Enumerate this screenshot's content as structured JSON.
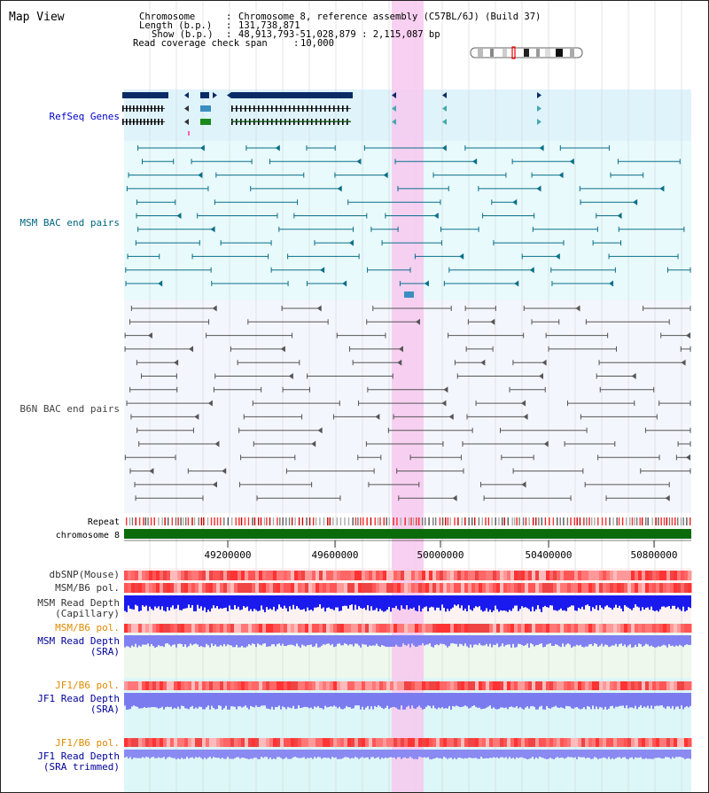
{
  "title": "Map View",
  "info": {
    "chromosome_label": "Chromosome",
    "chromosome_value": "Chromosome 8, reference assembly (C57BL/6J) (Build 37)",
    "length_label": "Length (b.p.)",
    "length_value": "131,738,871",
    "show_label": "Show (b.p.)",
    "show_value": "48,913,793-51,028,879 : 2,115,087 bp",
    "coverage_label": "Read coverage check span",
    "coverage_value": "10,000"
  },
  "tracks": {
    "refseq": "RefSeq Genes",
    "msm_bac": "MSM BAC end pairs",
    "b6n_bac": "B6N BAC end pairs",
    "repeat": "Repeat",
    "chromosome": "chromosome 8",
    "dbsnp": "dbSNP(Mouse)",
    "msm_b6_pol": "MSM/B6 pol.",
    "msm_read_depth_cap_1": "MSM Read Depth",
    "msm_read_depth_cap_2": "(Capillary)",
    "msm_b6_pol_sra": "MSM/B6 pol.",
    "msm_read_depth_sra_1": "MSM Read Depth",
    "msm_read_depth_sra_2": "(SRA)",
    "jf1_b6_pol": "JF1/B6 pol.",
    "jf1_read_depth_sra_1": "JF1 Read Depth",
    "jf1_read_depth_sra_2": "(SRA)",
    "jf1_b6_pol_2": "JF1/B6 pol.",
    "jf1_read_depth_trim_1": "JF1 Read Depth",
    "jf1_read_depth_trim_2": "(SRA trimmed)"
  },
  "axis": {
    "ticks": [
      "49200000",
      "49600000",
      "50000000",
      "50400000",
      "50800000"
    ]
  },
  "colors": {
    "refseq_label": "#0000cc",
    "msm_label": "#006680",
    "b6n_label": "#444444",
    "orange_label": "#e08a00",
    "blue_label": "#000099",
    "highlight": "#f7c8ee",
    "chrom_bar": "#0b6b0b"
  }
}
